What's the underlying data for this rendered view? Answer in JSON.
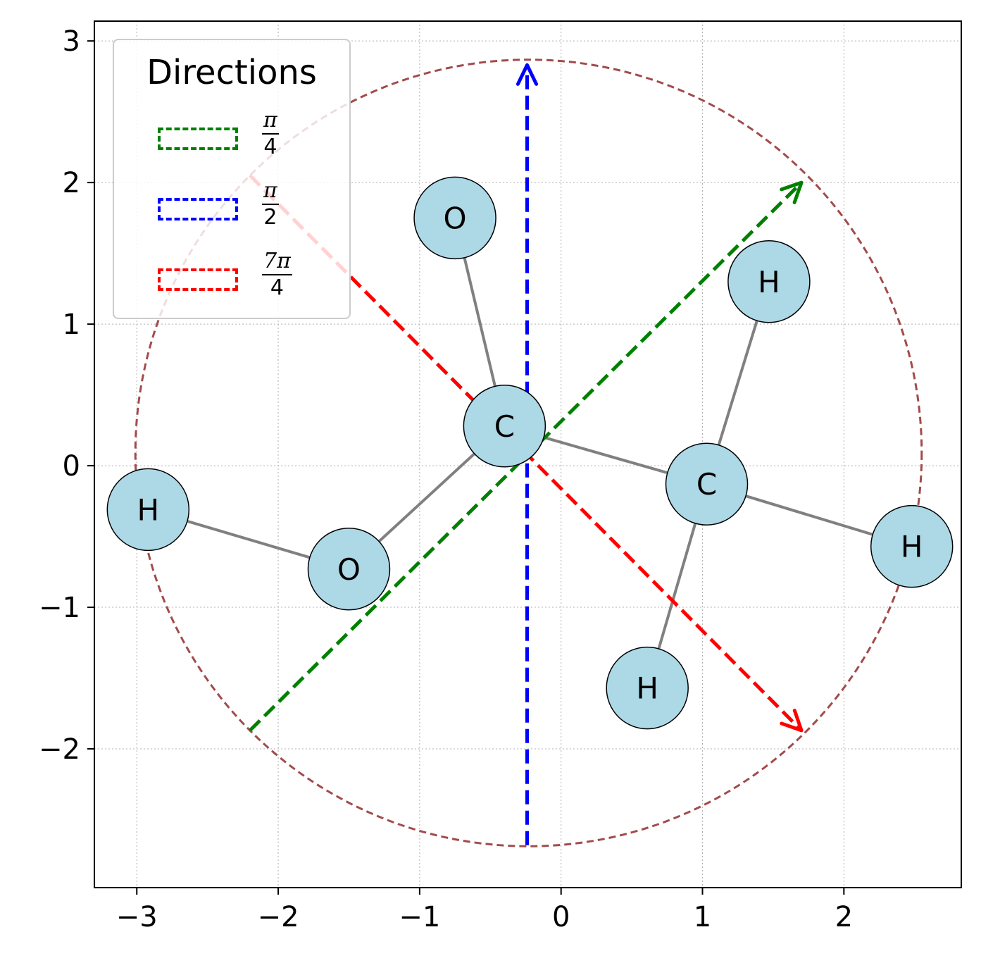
{
  "chart_data": {
    "type": "diagram",
    "xlim": [
      -3.3,
      2.83
    ],
    "ylim": [
      -2.98,
      3.14
    ],
    "x_ticks": [
      -3,
      -2,
      -1,
      0,
      1,
      2
    ],
    "y_ticks": [
      -2,
      -1,
      0,
      1,
      2,
      3
    ],
    "x_tick_labels": [
      "−3",
      "−2",
      "−1",
      "0",
      "1",
      "2"
    ],
    "y_tick_labels": [
      "−2",
      "−1",
      "0",
      "1",
      "2",
      "3"
    ],
    "grid": true,
    "legend_placement": "top-left",
    "circle": {
      "center": [
        -0.23,
        0.09
      ],
      "radius": 2.78,
      "color": "#a24b4b"
    },
    "atoms": [
      {
        "label": "C",
        "x": -0.4,
        "y": 0.28
      },
      {
        "label": "C",
        "x": 1.03,
        "y": -0.13
      },
      {
        "label": "O",
        "x": -0.75,
        "y": 1.75
      },
      {
        "label": "O",
        "x": -1.5,
        "y": -0.73
      },
      {
        "label": "H",
        "x": 1.47,
        "y": 1.3
      },
      {
        "label": "H",
        "x": -2.92,
        "y": -0.31
      },
      {
        "label": "H",
        "x": 2.48,
        "y": -0.57
      },
      {
        "label": "H",
        "x": 0.61,
        "y": -1.57
      }
    ],
    "bonds": [
      [
        0,
        2
      ],
      [
        0,
        3
      ],
      [
        0,
        1
      ],
      [
        3,
        5
      ],
      [
        1,
        4
      ],
      [
        1,
        6
      ],
      [
        1,
        7
      ]
    ],
    "arrows": [
      {
        "name": "pi-over-4",
        "color": "#008000",
        "from": [
          -2.2,
          -1.87
        ],
        "to": [
          1.7,
          2.0
        ]
      },
      {
        "name": "pi-over-2",
        "color": "#0000ff",
        "from": [
          -0.24,
          -2.68
        ],
        "to": [
          -0.24,
          2.83
        ]
      },
      {
        "name": "7pi-over-4",
        "color": "#ff0000",
        "from": [
          -2.2,
          2.05
        ],
        "to": [
          1.7,
          -1.87
        ]
      }
    ],
    "legend": {
      "title": "Directions",
      "entries": [
        {
          "num": "π",
          "den": "4",
          "color": "#008000"
        },
        {
          "num": "π",
          "den": "2",
          "color": "#0000ff"
        },
        {
          "num": "7π",
          "den": "4",
          "color": "#ff0000"
        }
      ]
    }
  }
}
